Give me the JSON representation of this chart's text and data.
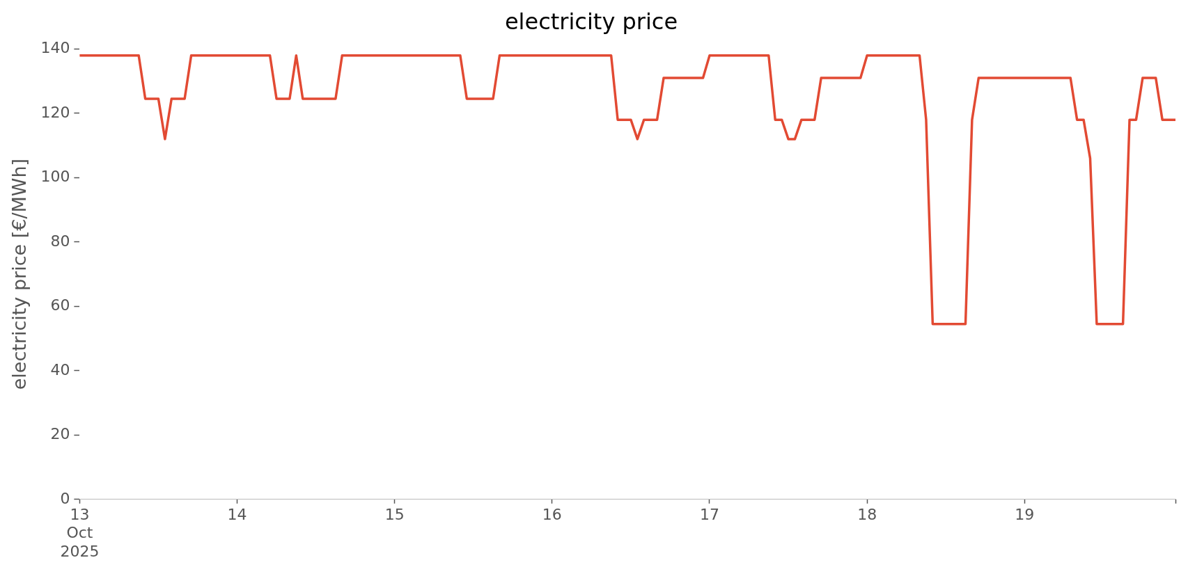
{
  "chart_data": {
    "type": "line",
    "title": "electricity price",
    "ylabel": "electricity price [€/MWh]",
    "x": [
      "2025-10-13T00:00",
      "2025-10-13T09:00",
      "2025-10-13T10:00",
      "2025-10-13T12:00",
      "2025-10-13T13:00",
      "2025-10-13T14:00",
      "2025-10-13T16:00",
      "2025-10-13T17:00",
      "2025-10-14T05:00",
      "2025-10-14T06:00",
      "2025-10-14T08:00",
      "2025-10-14T09:00",
      "2025-10-14T10:00",
      "2025-10-14T15:00",
      "2025-10-14T16:00",
      "2025-10-15T10:00",
      "2025-10-15T11:00",
      "2025-10-15T15:00",
      "2025-10-15T16:00",
      "2025-10-16T09:00",
      "2025-10-16T10:00",
      "2025-10-16T12:00",
      "2025-10-16T13:00",
      "2025-10-16T14:00",
      "2025-10-16T16:00",
      "2025-10-16T17:00",
      "2025-10-16T23:00",
      "2025-10-17T00:00",
      "2025-10-17T09:00",
      "2025-10-17T10:00",
      "2025-10-17T11:00",
      "2025-10-17T12:00",
      "2025-10-17T13:00",
      "2025-10-17T14:00",
      "2025-10-17T16:00",
      "2025-10-17T17:00",
      "2025-10-17T23:00",
      "2025-10-18T00:00",
      "2025-10-18T08:00",
      "2025-10-18T09:00",
      "2025-10-18T10:00",
      "2025-10-18T15:00",
      "2025-10-18T16:00",
      "2025-10-18T17:00",
      "2025-10-19T07:00",
      "2025-10-19T08:00",
      "2025-10-19T09:00",
      "2025-10-19T10:00",
      "2025-10-19T11:00",
      "2025-10-19T15:00",
      "2025-10-19T16:00",
      "2025-10-19T17:00",
      "2025-10-19T18:00",
      "2025-10-19T20:00",
      "2025-10-19T21:00",
      "2025-10-19T23:00"
    ],
    "series": [
      {
        "color": "#e24a33",
        "values": [
          138,
          138,
          124.5,
          124.5,
          112,
          124.5,
          124.5,
          138,
          138,
          124.5,
          124.5,
          138,
          124.5,
          124.5,
          138,
          138,
          124.5,
          124.5,
          138,
          138,
          118,
          118,
          112,
          118,
          118,
          131,
          131,
          138,
          138,
          118,
          118,
          112,
          112,
          118,
          118,
          131,
          131,
          138,
          138,
          118,
          54.5,
          54.5,
          118,
          131,
          131,
          118,
          118,
          106,
          54.5,
          54.5,
          118,
          118,
          131,
          131,
          118,
          118
        ]
      }
    ],
    "xticks": [
      {
        "value": "2025-10-13",
        "label": "13\nOct\n2025"
      },
      {
        "value": "2025-10-14",
        "label": "14"
      },
      {
        "value": "2025-10-15",
        "label": "15"
      },
      {
        "value": "2025-10-16",
        "label": "16"
      },
      {
        "value": "2025-10-17",
        "label": "17"
      },
      {
        "value": "2025-10-18",
        "label": "18"
      },
      {
        "value": "2025-10-19",
        "label": "19"
      },
      {
        "value": "2025-10-19T23:00",
        "label": null
      }
    ],
    "xlim": [
      "2025-10-13T00:00",
      "2025-10-19T23:00"
    ],
    "ylim": [
      0,
      140
    ],
    "yticks": [
      0,
      20,
      40,
      60,
      80,
      100,
      120,
      140
    ],
    "legend": false,
    "marker": "none",
    "line_style": "solid"
  }
}
